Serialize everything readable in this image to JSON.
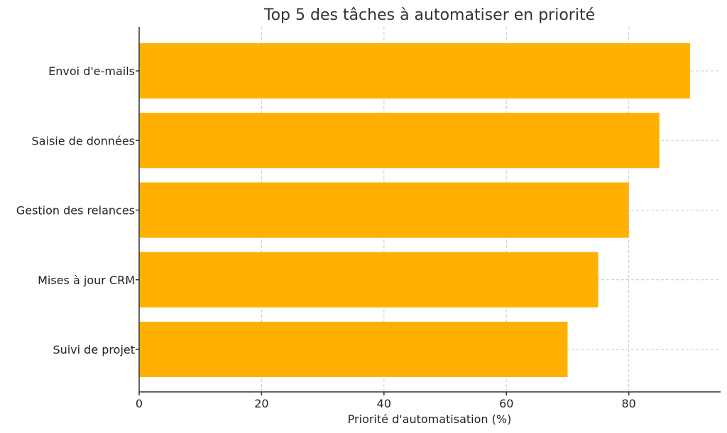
{
  "chart_data": {
    "type": "bar",
    "orientation": "horizontal",
    "title": "Top 5 des tâches à automatiser en priorité",
    "xlabel": "Priorité d'automatisation (%)",
    "ylabel": "",
    "categories": [
      "Envoi d'e-mails",
      "Saisie de données",
      "Gestion des relances",
      "Mises à jour CRM",
      "Suivi de projet"
    ],
    "values": [
      90,
      85,
      80,
      75,
      70
    ],
    "xlim": [
      0,
      95
    ],
    "xticks": [
      0,
      20,
      40,
      60,
      80
    ],
    "grid": true,
    "bar_color": "#FFB000"
  }
}
